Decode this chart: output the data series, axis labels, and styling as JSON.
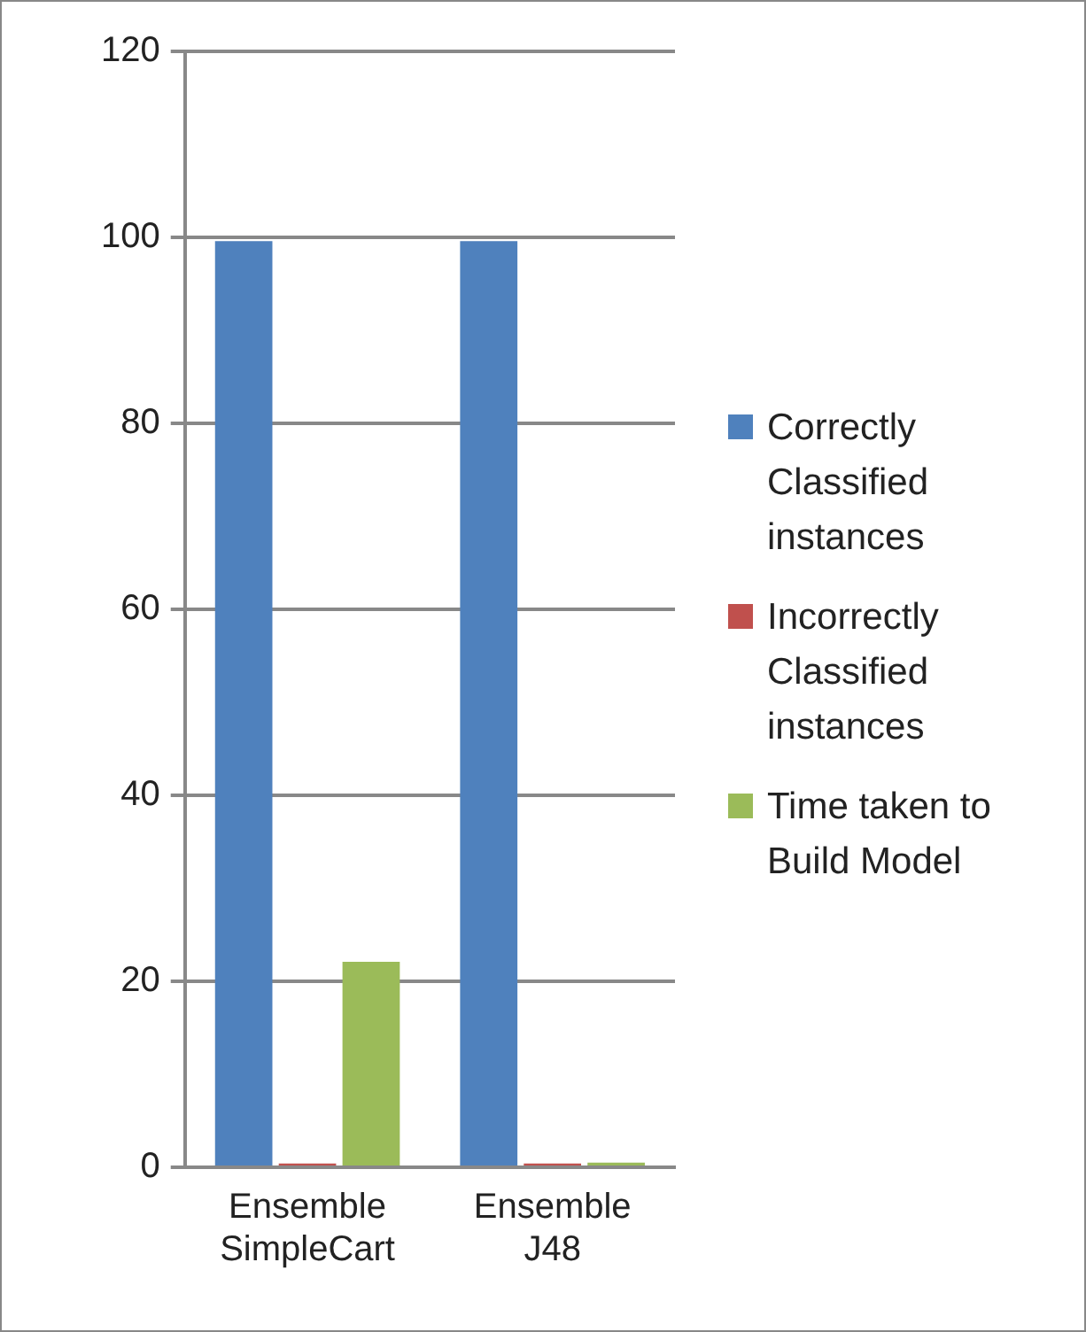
{
  "chart_data": {
    "type": "bar",
    "categories": [
      "Ensemble SimpleCart",
      "Ensemble J48"
    ],
    "series": [
      {
        "name": "Correctly Classified instances",
        "color": "#4f81bd",
        "values": [
          99.6,
          99.6
        ]
      },
      {
        "name": "Incorrectly Classified instances",
        "color": "#c0504d",
        "values": [
          0.4,
          0.4
        ]
      },
      {
        "name": "Time taken to Build Model",
        "color": "#9bbb59",
        "values": [
          22.1,
          0.5
        ]
      }
    ],
    "ylim": [
      0,
      120
    ],
    "yticks": [
      0,
      20,
      40,
      60,
      80,
      100,
      120
    ],
    "grid": "y",
    "legend": "right"
  }
}
